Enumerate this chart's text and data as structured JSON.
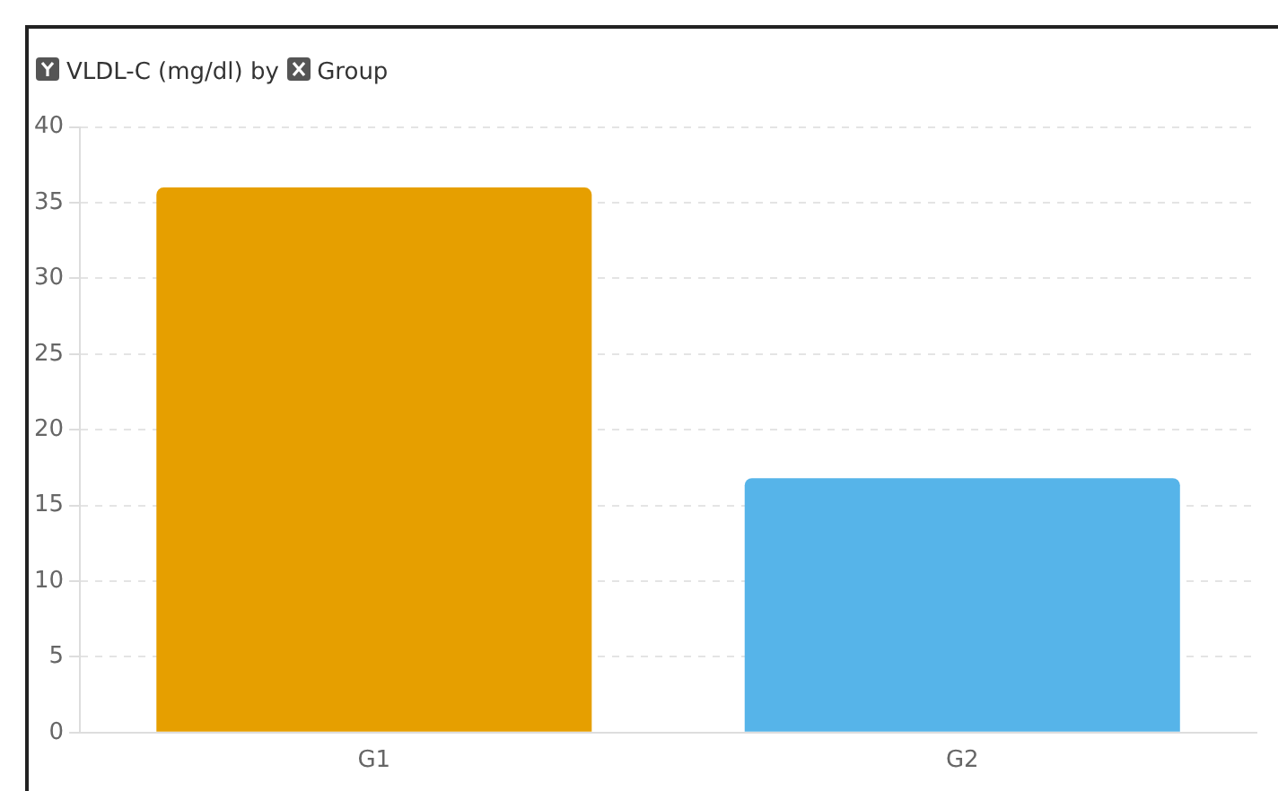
{
  "chart_data": {
    "type": "bar",
    "title": "by",
    "ylabel": "VLDL-C (mg/dl)",
    "xlabel": "Group",
    "categories": [
      "G1",
      "G2"
    ],
    "series": [
      {
        "values": [
          36,
          16.8
        ],
        "colors": [
          "#e69f00",
          "#56b4e9"
        ]
      }
    ],
    "ylim": [
      0,
      40
    ],
    "yticks": [
      0,
      5,
      10,
      15,
      20,
      25,
      30,
      35,
      40
    ],
    "grid": "y",
    "legend": false
  }
}
